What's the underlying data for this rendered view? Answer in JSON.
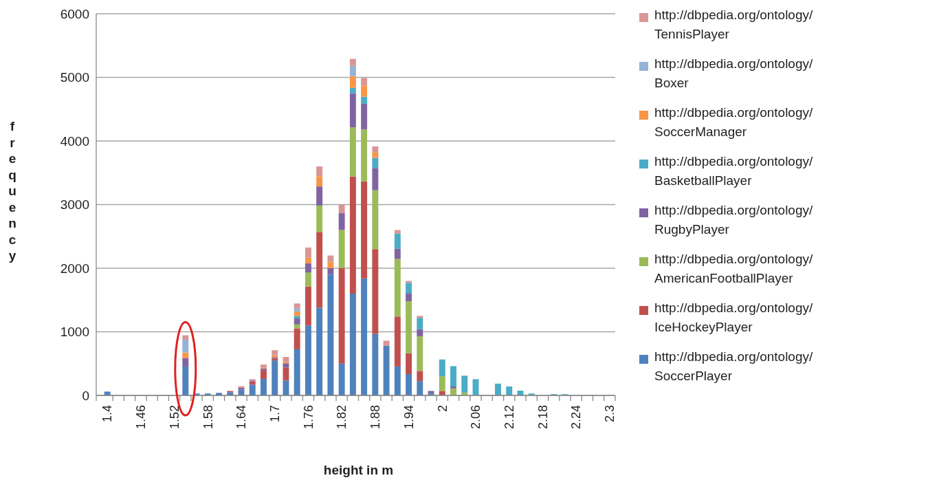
{
  "chart_data": {
    "type": "bar",
    "stacked": true,
    "xlabel": "height in m",
    "ylabel": "frequency",
    "categories": [
      "1.4",
      null,
      null,
      "1.46",
      null,
      null,
      "1.52",
      null,
      null,
      "1.58",
      null,
      null,
      "1.64",
      null,
      null,
      "1.7",
      null,
      null,
      "1.76",
      null,
      null,
      "1.82",
      null,
      null,
      "1.88",
      null,
      null,
      "1.94",
      null,
      null,
      "2",
      null,
      null,
      "2.06",
      null,
      null,
      "2.12",
      null,
      null,
      "2.18",
      null,
      null,
      "2.24",
      null,
      null,
      "2.3"
    ],
    "ylim": [
      0,
      6000
    ],
    "yticks": [
      0,
      1000,
      2000,
      3000,
      4000,
      5000,
      6000
    ],
    "grid": "y",
    "legend": "right",
    "series": [
      {
        "name": "http://dbpedia.org/ontology/SoccerPlayer",
        "color": "#4f81bd",
        "values": [
          60,
          0,
          0,
          0,
          0,
          0,
          0,
          455,
          30,
          30,
          40,
          50,
          90,
          170,
          260,
          550,
          235,
          725,
          1100,
          1380,
          1900,
          500,
          1600,
          1840,
          965,
          780,
          455,
          335,
          225,
          30,
          0,
          0,
          0,
          0,
          0,
          0,
          0,
          0,
          0,
          0,
          0,
          0,
          0,
          0,
          0,
          0
        ]
      },
      {
        "name": "http://dbpedia.org/ontology/IceHockeyPlayer",
        "color": "#c0504d",
        "values": [
          0,
          0,
          0,
          0,
          0,
          0,
          0,
          0,
          0,
          0,
          0,
          20,
          0,
          50,
          130,
          30,
          205,
          330,
          610,
          1190,
          0,
          1500,
          1840,
          1525,
          1335,
          0,
          785,
          325,
          160,
          0,
          70,
          0,
          0,
          0,
          0,
          0,
          0,
          0,
          0,
          0,
          0,
          0,
          0,
          0,
          0,
          0
        ]
      },
      {
        "name": "http://dbpedia.org/ontology/AmericanFootballPlayer",
        "color": "#9bbb59",
        "values": [
          0,
          0,
          0,
          0,
          0,
          0,
          0,
          0,
          0,
          0,
          0,
          0,
          0,
          0,
          0,
          0,
          0,
          60,
          225,
          415,
          0,
          600,
          775,
          815,
          925,
          0,
          905,
          820,
          545,
          0,
          230,
          110,
          45,
          0,
          0,
          0,
          0,
          0,
          0,
          0,
          0,
          0,
          0,
          0,
          0,
          0
        ]
      },
      {
        "name": "http://dbpedia.org/ontology/RugbyPlayer",
        "color": "#8064a2",
        "values": [
          0,
          0,
          0,
          0,
          0,
          0,
          0,
          130,
          0,
          0,
          0,
          0,
          30,
          15,
          30,
          20,
          65,
          95,
          140,
          300,
          100,
          270,
          535,
          405,
          350,
          0,
          160,
          120,
          110,
          40,
          0,
          30,
          0,
          0,
          0,
          0,
          0,
          0,
          0,
          0,
          0,
          0,
          0,
          0,
          0,
          0
        ]
      },
      {
        "name": "http://dbpedia.org/ontology/BasketballPlayer",
        "color": "#4bacc6",
        "values": [
          0,
          0,
          0,
          0,
          0,
          0,
          0,
          0,
          0,
          0,
          0,
          0,
          0,
          0,
          0,
          0,
          0,
          40,
          0,
          0,
          0,
          0,
          85,
          110,
          160,
          0,
          240,
          170,
          180,
          0,
          265,
          320,
          265,
          255,
          0,
          185,
          140,
          75,
          30,
          0,
          20,
          20,
          0,
          0,
          0,
          0
        ]
      },
      {
        "name": "http://dbpedia.org/ontology/SoccerManager",
        "color": "#f79646",
        "values": [
          0,
          0,
          0,
          0,
          0,
          0,
          0,
          90,
          0,
          0,
          0,
          0,
          0,
          0,
          15,
          30,
          20,
          70,
          90,
          160,
          100,
          0,
          185,
          175,
          90,
          0,
          0,
          0,
          0,
          0,
          0,
          0,
          0,
          0,
          0,
          0,
          0,
          0,
          0,
          0,
          0,
          0,
          0,
          0,
          0,
          0
        ]
      },
      {
        "name": "http://dbpedia.org/ontology/Boxer",
        "color": "#95b3d7",
        "values": [
          0,
          0,
          0,
          0,
          0,
          0,
          0,
          200,
          0,
          0,
          0,
          0,
          0,
          0,
          0,
          0,
          0,
          50,
          0,
          0,
          0,
          0,
          160,
          0,
          0,
          0,
          0,
          0,
          0,
          0,
          0,
          0,
          0,
          0,
          0,
          0,
          0,
          0,
          0,
          0,
          0,
          0,
          0,
          0,
          0,
          0
        ]
      },
      {
        "name": "http://dbpedia.org/ontology/TennisPlayer",
        "color": "#d99694",
        "values": [
          0,
          0,
          0,
          0,
          0,
          0,
          0,
          70,
          0,
          0,
          0,
          0,
          25,
          20,
          50,
          80,
          80,
          75,
          160,
          155,
          100,
          130,
          110,
          120,
          90,
          80,
          55,
          30,
          30,
          0,
          0,
          null,
          0,
          0,
          0,
          0,
          0,
          0,
          0,
          0,
          0,
          0,
          0,
          0,
          0,
          0
        ]
      }
    ]
  }
}
